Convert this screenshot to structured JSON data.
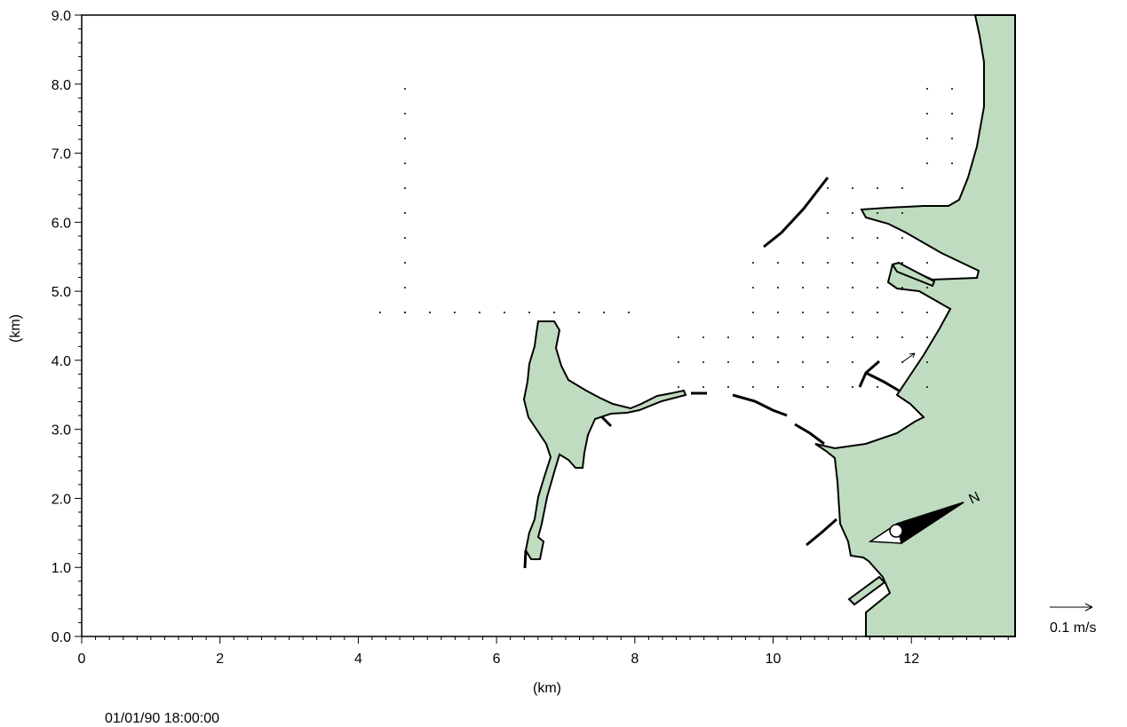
{
  "chart_data": {
    "type": "map",
    "xlabel": "(km)",
    "ylabel": "(km)",
    "xlim": [
      0,
      13.5
    ],
    "ylim": [
      0,
      9.0
    ],
    "x_ticks": [
      "0",
      "2",
      "4",
      "6",
      "8",
      "10",
      "12"
    ],
    "y_ticks": [
      "0.0",
      "1.0",
      "2.0",
      "3.0",
      "4.0",
      "5.0",
      "6.0",
      "7.0",
      "8.0",
      "9.0"
    ],
    "vector_scale_label": "0.1 m/s",
    "timestamp": "01/01/90 18:00:00",
    "north_arrow_label": "N",
    "colors": {
      "land": "#c0dcc0",
      "outline": "#000000",
      "background": "#ffffff"
    }
  }
}
